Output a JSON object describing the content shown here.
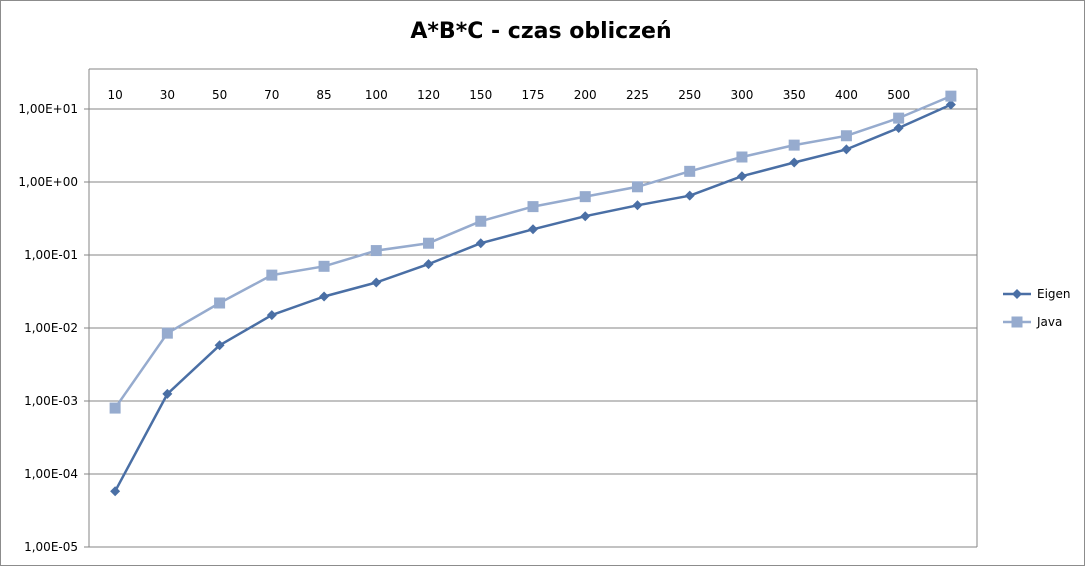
{
  "chart_data": {
    "type": "line",
    "title": "A*B*C - czas obliczeń",
    "xlabel": "",
    "ylabel": "",
    "x_scale": "category",
    "y_scale": "log",
    "categories": [
      "10",
      "30",
      "50",
      "70",
      "85",
      "100",
      "120",
      "150",
      "175",
      "200",
      "225",
      "250",
      "300",
      "350",
      "400",
      "500",
      ""
    ],
    "ylim": [
      1e-05,
      10
    ],
    "yticks": [
      {
        "value": 10,
        "label": "1,00E+01"
      },
      {
        "value": 1,
        "label": "1,00E+00"
      },
      {
        "value": 0.1,
        "label": "1,00E-01"
      },
      {
        "value": 0.01,
        "label": "1,00E-02"
      },
      {
        "value": 0.001,
        "label": "1,00E-03"
      },
      {
        "value": 0.0001,
        "label": "1,00E-04"
      },
      {
        "value": 1e-05,
        "label": "1,00E-05"
      }
    ],
    "grid": true,
    "x_tick_labels_position": "top",
    "legend_position": "right",
    "series": [
      {
        "name": "Eigen",
        "color": "#4a6fa5",
        "marker": "diamond",
        "values": [
          5.8e-05,
          0.00125,
          0.0058,
          0.015,
          0.027,
          0.042,
          0.075,
          0.145,
          0.225,
          0.34,
          0.48,
          0.65,
          1.2,
          1.85,
          2.8,
          5.5,
          11.5
        ]
      },
      {
        "name": "Java",
        "color": "#96abce",
        "marker": "square",
        "values": [
          0.0008,
          0.0085,
          0.022,
          0.053,
          0.07,
          0.115,
          0.145,
          0.29,
          0.46,
          0.63,
          0.86,
          1.4,
          2.2,
          3.2,
          4.3,
          7.5,
          15
        ]
      }
    ]
  }
}
